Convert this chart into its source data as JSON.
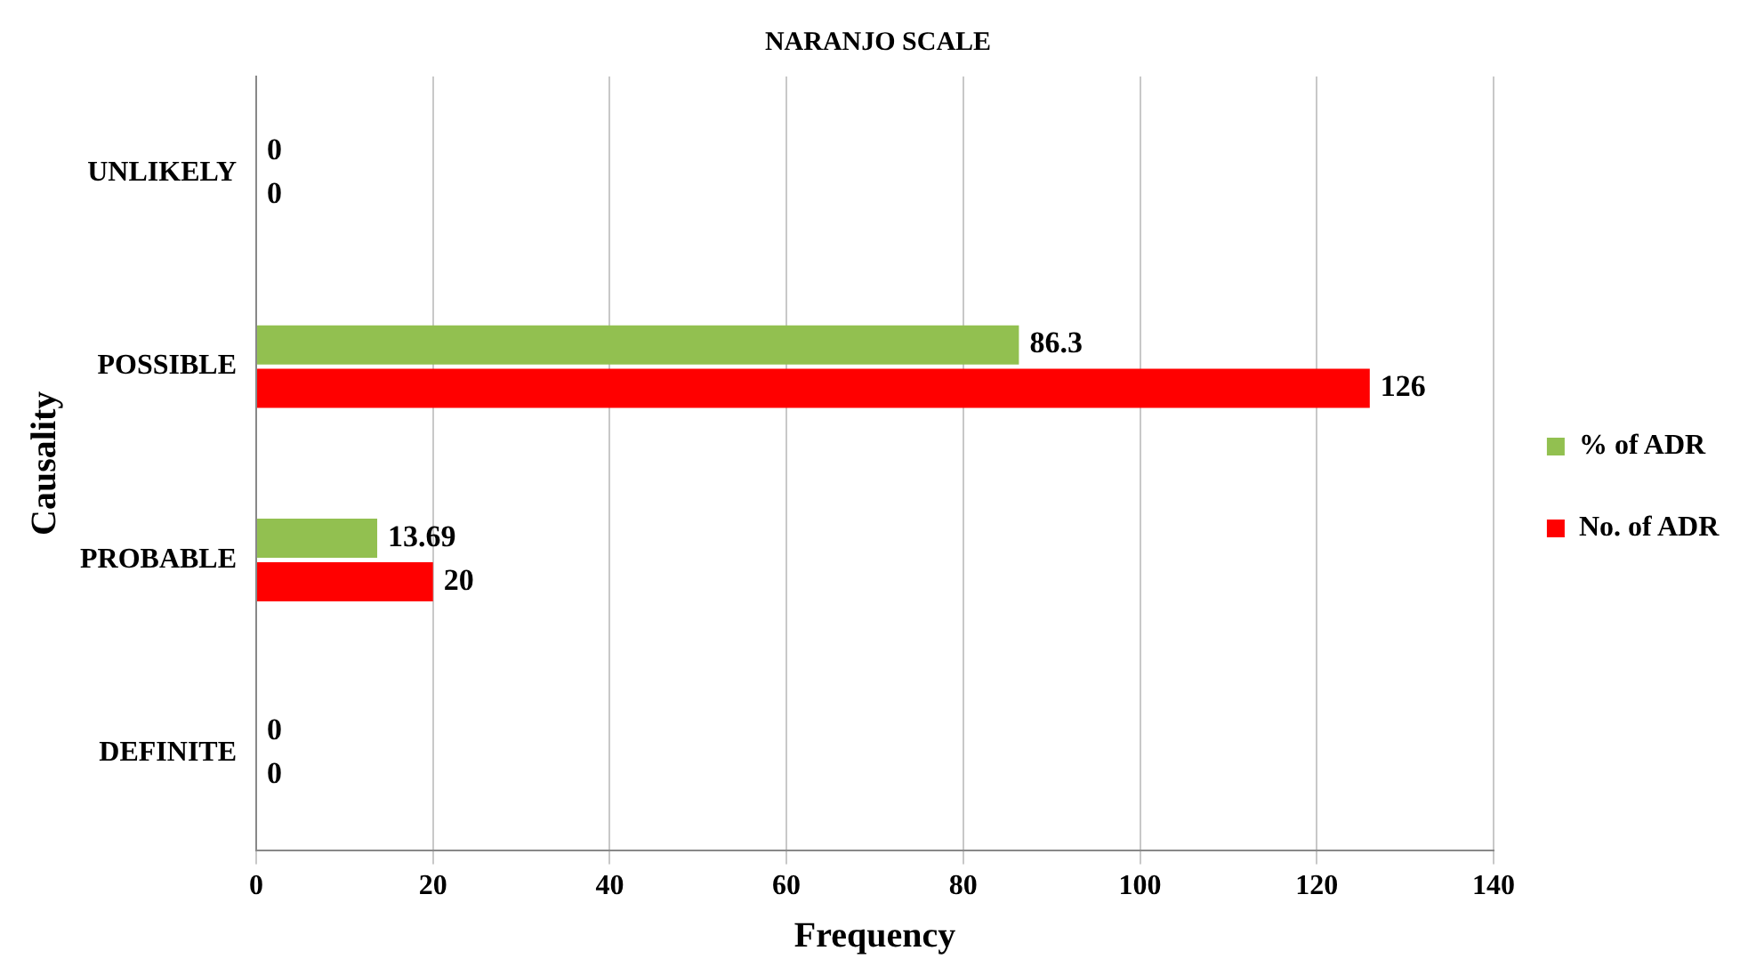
{
  "chart_data": {
    "type": "bar",
    "orientation": "horizontal",
    "title": "NARANJO SCALE",
    "xlabel": "Frequency",
    "ylabel": "Causality",
    "categories": [
      "UNLIKELY",
      "POSSIBLE",
      "PROBABLE",
      "DEFINITE"
    ],
    "series": [
      {
        "name": "% of ADR",
        "color": "#92c050",
        "values": [
          0,
          86.3,
          13.69,
          0
        ]
      },
      {
        "name": "No. of ADR",
        "color": "#ff0000",
        "values": [
          0,
          126,
          20,
          0
        ]
      }
    ],
    "xlim": [
      0,
      140
    ],
    "xticks": [
      0,
      20,
      40,
      60,
      80,
      100,
      120,
      140
    ],
    "grid": "x",
    "legend": "right",
    "data_labels": true
  }
}
